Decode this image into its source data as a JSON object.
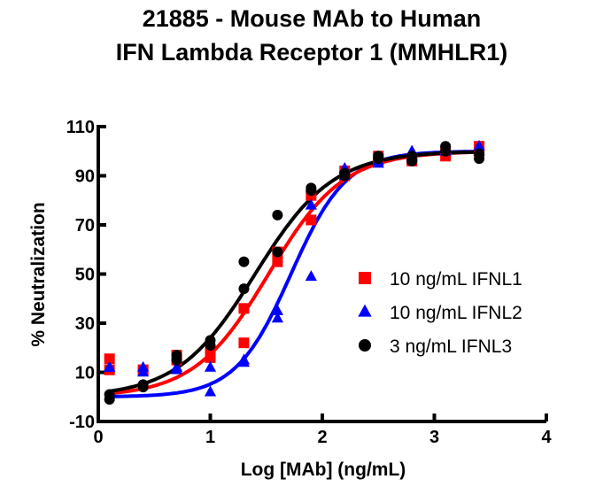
{
  "chart_data": {
    "type": "scatter",
    "title": [
      "21885 - Mouse MAb to Human",
      "IFN Lambda Receptor 1 (MMHLR1)"
    ],
    "xlabel": "Log [MAb] (ng/mL)",
    "ylabel": "% Neutralization",
    "xlim": [
      0,
      4
    ],
    "ylim": [
      -10,
      110
    ],
    "xticks": [
      "0",
      "1",
      "2",
      "3",
      "4"
    ],
    "yticks": [
      "-10",
      "10",
      "30",
      "50",
      "70",
      "90",
      "110"
    ],
    "grid": false,
    "legend_position": "right",
    "x": [
      0.1,
      0.4,
      0.7,
      1.0,
      1.3,
      1.6,
      1.9,
      2.2,
      2.5,
      2.8,
      3.1,
      3.4
    ],
    "series": [
      {
        "name": "10 ng/mL IFNL1",
        "color": "#ff0000",
        "marker": "square",
        "values": [
          [
            15.5,
            11
          ],
          [
            11,
            11
          ],
          [
            15,
            17
          ],
          [
            18,
            16
          ],
          [
            36,
            22
          ],
          [
            55,
            59
          ],
          [
            72,
            82
          ],
          [
            90,
            92
          ],
          [
            97,
            98
          ],
          [
            96,
            97
          ],
          [
            98,
            100
          ],
          [
            100,
            102
          ]
        ],
        "fit": {
          "bottom": 0,
          "top": 100,
          "logEC50": 1.52,
          "hill": 1.3
        }
      },
      {
        "name": "10 ng/mL IFNL2",
        "color": "#0000ff",
        "marker": "triangle",
        "values": [
          [
            12,
            12
          ],
          [
            12,
            10
          ],
          [
            11,
            12
          ],
          [
            12,
            2
          ],
          [
            14,
            15
          ],
          [
            32,
            35
          ],
          [
            49,
            78
          ],
          [
            93,
            90
          ],
          [
            95,
            96
          ],
          [
            98,
            100
          ],
          [
            100,
            101
          ],
          [
            100,
            102
          ]
        ],
        "fit": {
          "bottom": 0,
          "top": 100,
          "logEC50": 1.72,
          "hill": 1.75
        }
      },
      {
        "name": "3 ng/mL IFNL3",
        "color": "#000000",
        "marker": "circle",
        "values": [
          [
            1,
            -1
          ],
          [
            5,
            4
          ],
          [
            17,
            15
          ],
          [
            23,
            21
          ],
          [
            55,
            44
          ],
          [
            74,
            59
          ],
          [
            85,
            84
          ],
          [
            90,
            91
          ],
          [
            97,
            98
          ],
          [
            98,
            96
          ],
          [
            102,
            100
          ],
          [
            99,
            97
          ]
        ],
        "fit": {
          "bottom": 0,
          "top": 100,
          "logEC50": 1.4,
          "hill": 1.25
        }
      }
    ]
  }
}
